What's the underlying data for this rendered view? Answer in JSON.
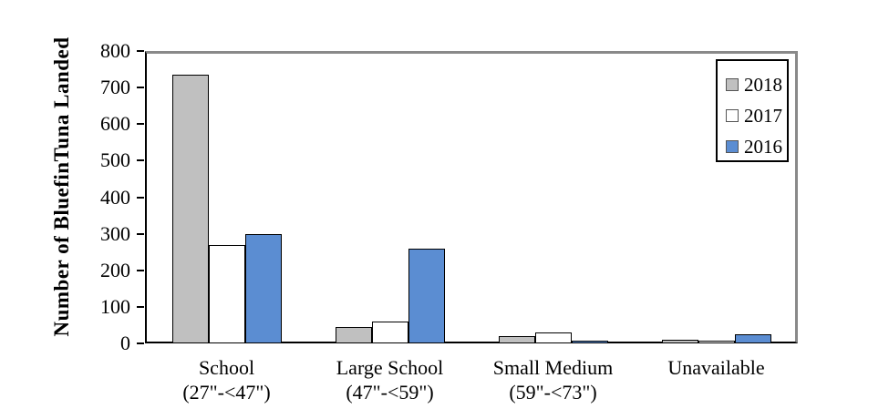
{
  "chart_data": {
    "type": "bar",
    "title": "",
    "ylabel": "Number of BluefinTuna Landed",
    "xlabel": "",
    "ylim": [
      0,
      800
    ],
    "yticks": [
      0,
      100,
      200,
      300,
      400,
      500,
      600,
      700,
      800
    ],
    "grid": false,
    "legend_position": "top-right",
    "categories": [
      {
        "label": "School",
        "sublabel": "(27\"-<47\")"
      },
      {
        "label": "Large School",
        "sublabel": "(47\"-<59\")"
      },
      {
        "label": "Small Medium",
        "sublabel": "(59\"-<73\")"
      },
      {
        "label": "Unavailable",
        "sublabel": ""
      }
    ],
    "series": [
      {
        "name": "2018",
        "color": "#C0C0C0",
        "values": [
          735,
          45,
          20,
          10
        ]
      },
      {
        "name": "2017",
        "color": "#FFFFFF",
        "values": [
          270,
          60,
          30,
          8
        ]
      },
      {
        "name": "2016",
        "color": "#5B8DD2",
        "values": [
          300,
          260,
          5,
          25
        ]
      }
    ],
    "colors": {
      "bar_border": "#000000",
      "axis": "#000000",
      "plot_border": "#898989",
      "background": "#FFFFFF"
    }
  }
}
